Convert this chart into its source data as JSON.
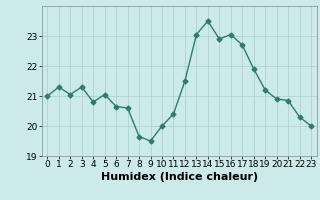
{
  "x": [
    0,
    1,
    2,
    3,
    4,
    5,
    6,
    7,
    8,
    9,
    10,
    11,
    12,
    13,
    14,
    15,
    16,
    17,
    18,
    19,
    20,
    21,
    22,
    23
  ],
  "y": [
    21.0,
    21.3,
    21.05,
    21.3,
    20.8,
    21.05,
    20.65,
    20.6,
    19.65,
    19.5,
    20.0,
    20.4,
    21.5,
    23.05,
    23.5,
    22.9,
    23.05,
    22.7,
    21.9,
    21.2,
    20.9,
    20.85,
    20.3,
    20.0
  ],
  "line_color": "#2d7d6e",
  "marker": "D",
  "marker_size": 2.5,
  "bg_color": "#cceaea",
  "grid_color": "#aacece",
  "xlabel": "Humidex (Indice chaleur)",
  "xlim": [
    -0.5,
    23.5
  ],
  "ylim": [
    19.0,
    24.0
  ],
  "yticks": [
    19,
    20,
    21,
    22,
    23
  ],
  "xticks": [
    0,
    1,
    2,
    3,
    4,
    5,
    6,
    7,
    8,
    9,
    10,
    11,
    12,
    13,
    14,
    15,
    16,
    17,
    18,
    19,
    20,
    21,
    22,
    23
  ],
  "tick_fontsize": 6.5,
  "xlabel_fontsize": 8,
  "linewidth": 1.0
}
